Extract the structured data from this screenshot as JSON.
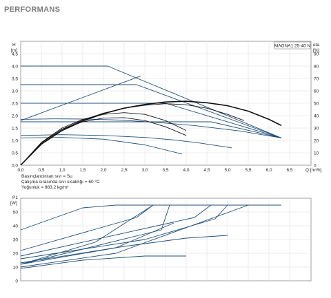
{
  "page_title": "PERFORMANS",
  "model_label": "MAGNA1 25-40 N",
  "notes": [
    "Basınçlandırılan sıvı = Su",
    "Çalışma sırasında sıvı sıcaklığı = 60 °C",
    "Yoğunluk = 983.2 kg/m³"
  ],
  "colors": {
    "curve_blue": "#1f4e79",
    "curve_black": "#111111",
    "grid": "#dcdcdc",
    "frame": "#888888"
  },
  "chart_data": [
    {
      "type": "line",
      "title": "",
      "ylabel_left": "H",
      "ylabel_left_unit": "[m]",
      "ylabel_right": "eta",
      "ylabel_right_unit": "[%]",
      "xlabel": "Q [m³/h]",
      "xlim": [
        0,
        6.8
      ],
      "ylim": [
        0,
        5.0
      ],
      "ylim_right": [
        0,
        100
      ],
      "grid": true,
      "x_ticks": [
        "0.0",
        "0.5",
        "1.0",
        "1.5",
        "2.0",
        "2.5",
        "3.0",
        "3.5",
        "4.0",
        "4.5",
        "5.0",
        "5.5",
        "6.0",
        "6.5"
      ],
      "y_ticks": [
        "0.0",
        "0.5",
        "1.0",
        "1.5",
        "2.0",
        "2.5",
        "3.0",
        "3.5",
        "4.0",
        "4.5"
      ],
      "y_ticks_right": [
        "0",
        "10",
        "20",
        "30",
        "40",
        "50",
        "60",
        "70",
        "80",
        "90"
      ],
      "series": [
        {
          "color": "blue",
          "x": [
            0,
            2.1,
            6.3
          ],
          "y": [
            4.0,
            4.0,
            1.1
          ]
        },
        {
          "color": "blue",
          "x": [
            0,
            2.8,
            6.3
          ],
          "y": [
            3.25,
            3.25,
            1.1
          ]
        },
        {
          "color": "blue",
          "x": [
            0,
            3.5,
            6.3
          ],
          "y": [
            2.5,
            2.5,
            1.1
          ]
        },
        {
          "color": "blue",
          "x": [
            0,
            4.6,
            6.3
          ],
          "y": [
            1.75,
            1.75,
            1.1
          ]
        },
        {
          "color": "blue",
          "x": [
            0,
            0.8,
            1.6,
            2.4,
            3.2,
            4.2,
            5.3,
            6.3
          ],
          "y": [
            1.85,
            1.87,
            1.86,
            1.82,
            1.74,
            1.6,
            1.38,
            1.1
          ]
        },
        {
          "color": "blue",
          "x": [
            0,
            1.0,
            2.0,
            3.0,
            3.7,
            4.3,
            5.1
          ],
          "y": [
            1.2,
            1.23,
            1.2,
            1.12,
            1.02,
            0.9,
            0.7
          ]
        },
        {
          "color": "blue",
          "x": [
            0,
            1.0,
            2.0,
            3.0,
            3.9
          ],
          "y": [
            1.1,
            1.12,
            1.05,
            0.82,
            0.45
          ]
        },
        {
          "color": "blue",
          "x": [
            0,
            2.9
          ],
          "y": [
            1.8,
            3.6
          ]
        },
        {
          "color": "black",
          "x": [
            0,
            0.5,
            1.0,
            1.5,
            2.0,
            2.5,
            3.0,
            3.5,
            4.0,
            4.5,
            5.0,
            5.5,
            6.0,
            6.3
          ],
          "y": [
            0,
            0.85,
            1.4,
            1.78,
            2.08,
            2.3,
            2.45,
            2.55,
            2.58,
            2.52,
            2.4,
            2.18,
            1.85,
            1.6
          ]
        },
        {
          "color": "black",
          "x": [
            0,
            0.5,
            1.0,
            1.5,
            2.0,
            2.5,
            3.0,
            3.5,
            4.0,
            4.5,
            5.0,
            5.4
          ],
          "y": [
            0,
            0.9,
            1.45,
            1.82,
            2.1,
            2.3,
            2.42,
            2.48,
            2.44,
            2.3,
            2.05,
            1.8
          ]
        },
        {
          "color": "black",
          "x": [
            0,
            0.5,
            1.0,
            1.5,
            2.0,
            2.5,
            3.0,
            3.5,
            4.0
          ],
          "y": [
            0,
            0.92,
            1.5,
            1.85,
            2.05,
            2.12,
            2.05,
            1.8,
            1.4
          ]
        },
        {
          "color": "black",
          "x": [
            0,
            0.5,
            1.0,
            1.5,
            2.0,
            2.5,
            3.0,
            3.5,
            4.0
          ],
          "y": [
            0,
            0.9,
            1.45,
            1.75,
            1.9,
            1.92,
            1.8,
            1.55,
            1.2
          ]
        }
      ]
    },
    {
      "type": "line",
      "title": "",
      "ylabel": "P1",
      "ylabel_unit": "[W]",
      "xlim": [
        0,
        6.8
      ],
      "ylim": [
        0,
        60
      ],
      "grid": true,
      "y_ticks": [
        "0",
        "10",
        "20",
        "30",
        "40",
        "50"
      ],
      "series": [
        {
          "color": "blue",
          "x": [
            0,
            1.5,
            2.3,
            6.3
          ],
          "y": [
            37,
            53,
            55,
            55
          ]
        },
        {
          "color": "blue",
          "x": [
            0,
            2.8,
            3.2,
            6.3
          ],
          "y": [
            22,
            46,
            55,
            55
          ]
        },
        {
          "color": "blue",
          "x": [
            0,
            3.4,
            3.6,
            6.3
          ],
          "y": [
            12,
            37,
            55,
            55
          ]
        },
        {
          "color": "blue",
          "x": [
            0,
            4.2,
            4.6,
            6.3
          ],
          "y": [
            18,
            46,
            55,
            55
          ]
        },
        {
          "color": "blue",
          "x": [
            0,
            3.0,
            4.7,
            5.0,
            6.3
          ],
          "y": [
            16,
            30,
            45,
            55,
            55
          ]
        },
        {
          "color": "blue",
          "x": [
            0,
            2.3,
            5.5,
            6.3
          ],
          "y": [
            10,
            20,
            55,
            55
          ]
        },
        {
          "color": "blue",
          "x": [
            0,
            2.5,
            4.0,
            5.0
          ],
          "y": [
            13,
            25,
            31,
            33
          ]
        },
        {
          "color": "blue",
          "x": [
            0,
            1.5,
            3.0,
            4.0
          ],
          "y": [
            9,
            15,
            18,
            18
          ]
        },
        {
          "color": "blue",
          "x": [
            0,
            1.8,
            3.2
          ],
          "y": [
            12,
            28,
            55
          ]
        },
        {
          "color": "blue",
          "x": [
            0,
            2.3,
            3.7
          ],
          "y": [
            12,
            24,
            42
          ]
        }
      ]
    }
  ]
}
